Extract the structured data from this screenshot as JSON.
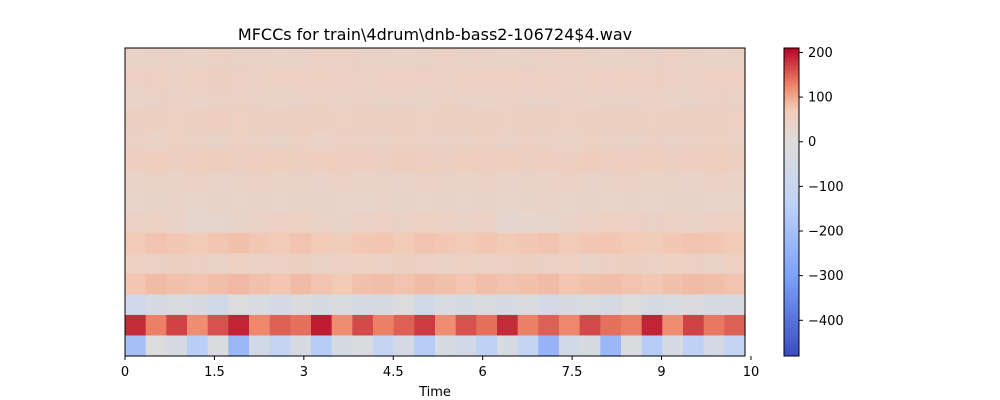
{
  "chart_data": {
    "type": "heatmap",
    "title": "MFCCs for train\\4drum\\dnb-bass2-106724$4.wav",
    "xlabel": "Time",
    "ylabel": "",
    "xlim": [
      0,
      10.4
    ],
    "x_ticks": [
      {
        "value": 0,
        "label": "0"
      },
      {
        "value": 1.5,
        "label": "1.5"
      },
      {
        "value": 3,
        "label": "3"
      },
      {
        "value": 4.5,
        "label": "4.5"
      },
      {
        "value": 6,
        "label": "6"
      },
      {
        "value": 7.5,
        "label": "7.5"
      },
      {
        "value": 9,
        "label": "9"
      },
      {
        "value": 10.5,
        "label": "10"
      }
    ],
    "y_ticks": [],
    "colormap": "coolwarm",
    "color_range": [
      -480,
      210
    ],
    "colorbar_ticks": [
      {
        "value": 200,
        "label": "200"
      },
      {
        "value": 100,
        "label": "100"
      },
      {
        "value": 0,
        "label": "0"
      },
      {
        "value": -100,
        "label": "−100"
      },
      {
        "value": -200,
        "label": "−200"
      },
      {
        "value": -300,
        "label": "−300"
      },
      {
        "value": -400,
        "label": "−400"
      }
    ],
    "n_coefficients": 15,
    "n_frames": 30,
    "rows_top_to_bottom": [
      [
        42,
        44,
        43,
        42,
        45,
        44,
        43,
        42,
        44,
        46,
        45,
        43,
        44,
        42,
        43,
        45,
        44,
        43,
        42,
        44,
        43,
        45,
        44,
        42,
        43,
        44,
        45,
        43,
        42,
        44
      ],
      [
        48,
        50,
        47,
        49,
        52,
        48,
        47,
        50,
        49,
        51,
        48,
        47,
        49,
        50,
        48,
        47,
        49,
        51,
        50,
        48,
        49,
        47,
        50,
        48,
        49,
        51,
        48,
        47,
        50,
        49
      ],
      [
        40,
        44,
        46,
        42,
        45,
        47,
        43,
        41,
        44,
        46,
        42,
        45,
        43,
        44,
        41,
        46,
        44,
        42,
        45,
        43,
        44,
        46,
        42,
        44,
        43,
        45,
        41,
        44,
        46,
        43
      ],
      [
        52,
        55,
        50,
        53,
        56,
        51,
        54,
        52,
        55,
        53,
        50,
        54,
        52,
        55,
        51,
        53,
        55,
        52,
        50,
        54,
        53,
        51,
        55,
        52,
        54,
        50,
        53,
        55,
        52,
        51
      ],
      [
        45,
        42,
        50,
        47,
        43,
        51,
        46,
        44,
        49,
        42,
        48,
        45,
        43,
        50,
        47,
        44,
        46,
        49,
        43,
        48,
        45,
        42,
        50,
        46,
        44,
        48,
        43,
        47,
        49,
        45
      ],
      [
        56,
        60,
        54,
        58,
        61,
        55,
        57,
        59,
        53,
        60,
        56,
        58,
        54,
        61,
        57,
        55,
        59,
        56,
        60,
        54,
        58,
        55,
        61,
        57,
        56,
        59,
        54,
        58,
        60,
        55
      ],
      [
        40,
        44,
        42,
        45,
        38,
        43,
        46,
        41,
        44,
        39,
        45,
        42,
        44,
        40,
        46,
        43,
        41,
        45,
        39,
        44,
        42,
        46,
        40,
        43,
        45,
        41,
        44,
        38,
        46,
        42
      ],
      [
        32,
        36,
        38,
        34,
        37,
        33,
        35,
        31,
        37,
        36,
        34,
        33,
        38,
        35,
        32,
        36,
        34,
        37,
        33,
        35,
        38,
        32,
        36,
        34,
        37,
        33,
        35,
        36,
        34,
        32
      ],
      [
        46,
        50,
        40,
        26,
        28,
        30,
        44,
        48,
        50,
        42,
        36,
        46,
        48,
        44,
        50,
        47,
        42,
        45,
        22,
        24,
        26,
        38,
        46,
        50,
        48,
        44,
        46,
        42,
        48,
        50
      ],
      [
        70,
        78,
        74,
        72,
        76,
        80,
        74,
        70,
        78,
        72,
        66,
        74,
        76,
        72,
        78,
        74,
        70,
        76,
        72,
        74,
        78,
        70,
        74,
        76,
        72,
        68,
        74,
        78,
        76,
        72
      ],
      [
        50,
        46,
        52,
        48,
        44,
        50,
        46,
        48,
        52,
        44,
        48,
        50,
        46,
        52,
        48,
        44,
        50,
        46,
        48,
        52,
        46,
        50,
        44,
        48,
        52,
        46,
        50,
        48,
        44,
        50
      ],
      [
        76,
        84,
        80,
        78,
        82,
        86,
        80,
        76,
        84,
        78,
        72,
        80,
        82,
        78,
        84,
        80,
        76,
        82,
        78,
        80,
        84,
        76,
        80,
        82,
        78,
        74,
        80,
        84,
        82,
        78
      ],
      [
        -70,
        -40,
        -20,
        -30,
        -60,
        -10,
        -25,
        -50,
        -15,
        -35,
        -20,
        -45,
        -30,
        -10,
        -55,
        -25,
        -40,
        -20,
        -35,
        -15,
        -50,
        -30,
        -20,
        -45,
        -10,
        -35,
        -25,
        -15,
        -40,
        -30
      ],
      [
        185,
        130,
        170,
        120,
        160,
        190,
        125,
        150,
        140,
        195,
        120,
        165,
        130,
        150,
        175,
        120,
        160,
        140,
        185,
        130,
        150,
        125,
        165,
        140,
        130,
        190,
        120,
        170,
        135,
        150
      ],
      [
        -200,
        -10,
        -40,
        -150,
        -20,
        -230,
        -60,
        -120,
        -30,
        -160,
        -40,
        -20,
        -120,
        -50,
        -160,
        -30,
        -60,
        -140,
        -40,
        -120,
        -240,
        -60,
        -30,
        -230,
        -20,
        -160,
        -40,
        -140,
        -50,
        -120
      ]
    ]
  }
}
